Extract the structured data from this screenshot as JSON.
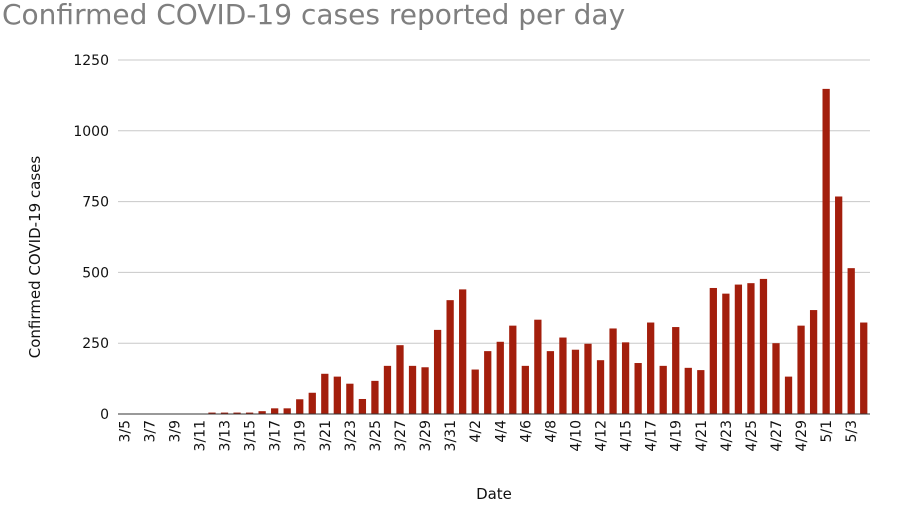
{
  "chart_data": {
    "type": "bar",
    "title": "Confirmed COVID-19 cases reported per day",
    "xlabel": "Date",
    "ylabel": "Confirmed COVID-19 cases",
    "ylim": [
      0,
      1250
    ],
    "yticks": [
      0,
      250,
      500,
      750,
      1000,
      1250
    ],
    "grid": true,
    "bar_color": "#a31e0c",
    "categories": [
      "3/5",
      "3/6",
      "3/7",
      "3/8",
      "3/9",
      "3/10",
      "3/11",
      "3/12",
      "3/13",
      "3/14",
      "3/15",
      "3/16",
      "3/17",
      "3/18",
      "3/19",
      "3/20",
      "3/21",
      "3/22",
      "3/23",
      "3/24",
      "3/25",
      "3/26",
      "3/27",
      "3/28",
      "3/29",
      "3/30",
      "3/31",
      "4/1",
      "4/2",
      "4/3",
      "4/4",
      "4/5",
      "4/6",
      "4/7",
      "4/8",
      "4/9",
      "4/10",
      "4/11",
      "4/12",
      "4/14",
      "4/15",
      "4/16",
      "4/17",
      "4/18",
      "4/19",
      "4/20",
      "4/21",
      "4/22",
      "4/23",
      "4/24",
      "4/25",
      "4/26",
      "4/27",
      "4/28",
      "4/29",
      "4/30",
      "5/1",
      "5/2",
      "5/3",
      "5/4"
    ],
    "x_tick_labels": [
      "3/5",
      "3/7",
      "3/9",
      "3/11",
      "3/13",
      "3/15",
      "3/17",
      "3/19",
      "3/21",
      "3/23",
      "3/25",
      "3/27",
      "3/29",
      "3/31",
      "4/2",
      "4/4",
      "4/6",
      "4/8",
      "4/10",
      "4/12",
      "4/15",
      "4/17",
      "4/19",
      "4/21",
      "4/23",
      "4/25",
      "4/27",
      "4/29",
      "5/1",
      "5/3"
    ],
    "values": [
      1,
      1,
      1,
      1,
      1,
      1,
      1,
      5,
      5,
      5,
      5,
      10,
      20,
      20,
      52,
      75,
      142,
      132,
      107,
      53,
      117,
      170,
      243,
      170,
      165,
      297,
      402,
      440,
      157,
      222,
      255,
      312,
      170,
      333,
      222,
      270,
      227,
      248,
      190,
      302,
      253,
      180,
      323,
      170,
      307,
      163,
      155,
      445,
      425,
      457,
      462,
      477,
      250,
      132,
      312,
      367,
      1148,
      768,
      515,
      323
    ]
  }
}
